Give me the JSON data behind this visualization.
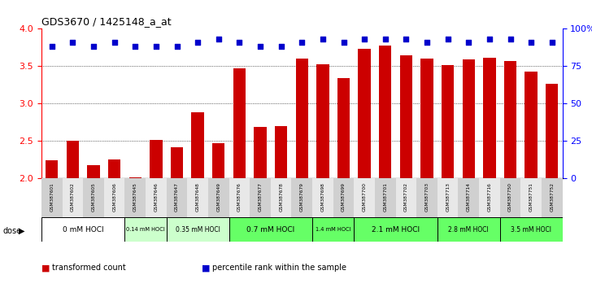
{
  "title": "GDS3670 / 1425148_a_at",
  "samples": [
    "GSM387601",
    "GSM387602",
    "GSM387605",
    "GSM387606",
    "GSM387645",
    "GSM387646",
    "GSM387647",
    "GSM387648",
    "GSM387649",
    "GSM387676",
    "GSM387677",
    "GSM387678",
    "GSM387679",
    "GSM387698",
    "GSM387699",
    "GSM387700",
    "GSM387701",
    "GSM387702",
    "GSM387703",
    "GSM387713",
    "GSM387714",
    "GSM387716",
    "GSM387750",
    "GSM387751",
    "GSM387752"
  ],
  "bar_values": [
    2.24,
    2.5,
    2.18,
    2.26,
    2.02,
    2.52,
    2.42,
    2.89,
    2.47,
    3.47,
    2.69,
    2.7,
    3.6,
    3.53,
    3.34,
    3.73,
    3.78,
    3.65,
    3.6,
    3.52,
    3.59,
    3.61,
    3.57,
    3.43,
    3.27
  ],
  "dot_values": [
    88,
    91,
    88,
    91,
    88,
    88,
    88,
    91,
    93,
    91,
    88,
    88,
    91,
    93,
    91,
    93,
    93,
    93,
    91,
    93,
    91,
    93,
    93,
    91,
    91
  ],
  "dose_groups": [
    {
      "label": "0 mM HOCl",
      "start": 0,
      "end": 4,
      "color": "#ffffff"
    },
    {
      "label": "0.14 mM HOCl",
      "start": 4,
      "end": 6,
      "color": "#ccffcc"
    },
    {
      "label": "0.35 mM HOCl",
      "start": 6,
      "end": 9,
      "color": "#ccffcc"
    },
    {
      "label": "0.7 mM HOCl",
      "start": 9,
      "end": 13,
      "color": "#66ff66"
    },
    {
      "label": "1.4 mM HOCl",
      "start": 13,
      "end": 15,
      "color": "#66ff66"
    },
    {
      "label": "2.1 mM HOCl",
      "start": 15,
      "end": 19,
      "color": "#66ff66"
    },
    {
      "label": "2.8 mM HOCl",
      "start": 19,
      "end": 22,
      "color": "#66ff66"
    },
    {
      "label": "3.5 mM HOCl",
      "start": 22,
      "end": 25,
      "color": "#66ff66"
    }
  ],
  "bar_color": "#cc0000",
  "dot_color": "#0000cc",
  "ylim_left": [
    2.0,
    4.0
  ],
  "ylim_right": [
    0,
    100
  ],
  "yticks_left": [
    2.0,
    2.5,
    3.0,
    3.5,
    4.0
  ],
  "yticks_right": [
    0,
    25,
    50,
    75,
    100
  ],
  "ytick_right_labels": [
    "0",
    "25",
    "50",
    "75",
    "100%"
  ],
  "bar_bottom": 2.0,
  "grid_values": [
    2.5,
    3.0,
    3.5
  ],
  "legend_items": [
    {
      "label": "transformed count",
      "color": "#cc0000"
    },
    {
      "label": "percentile rank within the sample",
      "color": "#0000cc"
    }
  ]
}
